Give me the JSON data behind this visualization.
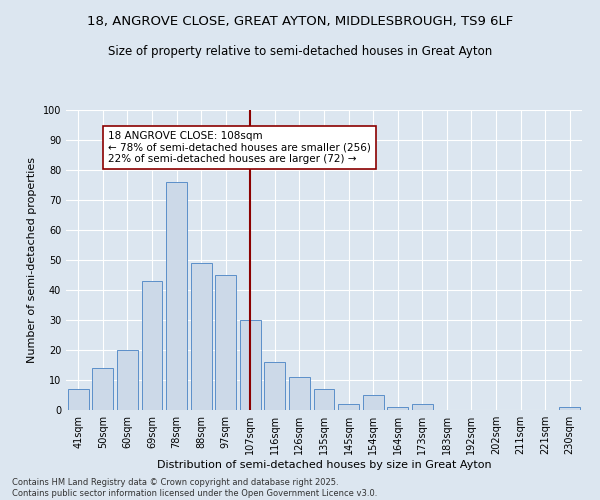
{
  "title1": "18, ANGROVE CLOSE, GREAT AYTON, MIDDLESBROUGH, TS9 6LF",
  "title2": "Size of property relative to semi-detached houses in Great Ayton",
  "xlabel": "Distribution of semi-detached houses by size in Great Ayton",
  "ylabel": "Number of semi-detached properties",
  "categories": [
    "41sqm",
    "50sqm",
    "60sqm",
    "69sqm",
    "78sqm",
    "88sqm",
    "97sqm",
    "107sqm",
    "116sqm",
    "126sqm",
    "135sqm",
    "145sqm",
    "154sqm",
    "164sqm",
    "173sqm",
    "183sqm",
    "192sqm",
    "202sqm",
    "211sqm",
    "221sqm",
    "230sqm"
  ],
  "values": [
    7,
    14,
    20,
    43,
    76,
    49,
    45,
    30,
    16,
    11,
    7,
    2,
    5,
    1,
    2,
    0,
    0,
    0,
    0,
    0,
    1
  ],
  "bar_color": "#ccd9e8",
  "bar_edge_color": "#5b8fc9",
  "vline_x_index": 7,
  "vline_color": "#8b0000",
  "annotation_text": "18 ANGROVE CLOSE: 108sqm\n← 78% of semi-detached houses are smaller (256)\n22% of semi-detached houses are larger (72) →",
  "annotation_box_color": "#ffffff",
  "annotation_box_edge": "#8b0000",
  "ylim": [
    0,
    100
  ],
  "yticks": [
    0,
    10,
    20,
    30,
    40,
    50,
    60,
    70,
    80,
    90,
    100
  ],
  "background_color": "#dce6f0",
  "footer": "Contains HM Land Registry data © Crown copyright and database right 2025.\nContains public sector information licensed under the Open Government Licence v3.0.",
  "title_fontsize": 9.5,
  "subtitle_fontsize": 8.5,
  "tick_fontsize": 7,
  "label_fontsize": 8,
  "footer_fontsize": 6,
  "annotation_fontsize": 7.5
}
